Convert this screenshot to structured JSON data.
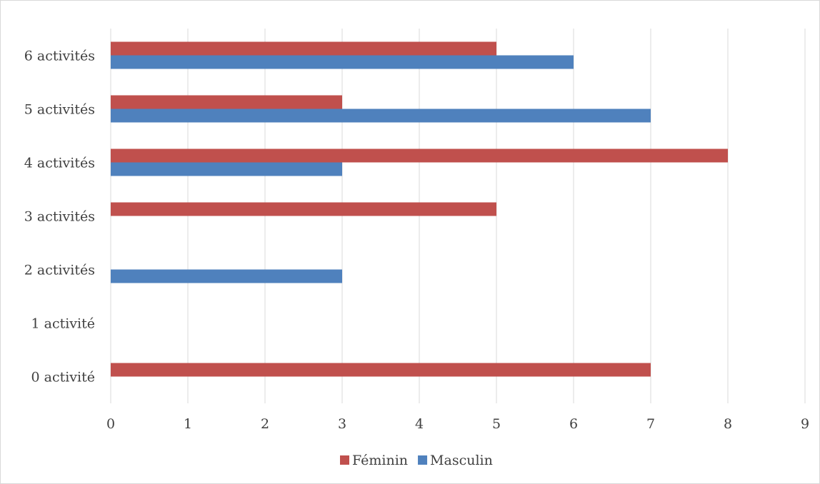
{
  "chart_data": {
    "type": "bar",
    "orientation": "horizontal",
    "categories": [
      "0 activité",
      "1 activité",
      "2 activités",
      "3 activités",
      "4 activités",
      "5 activités",
      "6 activités"
    ],
    "series": [
      {
        "name": "Féminin",
        "color": "#c0504d",
        "values": [
          7,
          0,
          0,
          5,
          8,
          3,
          5
        ]
      },
      {
        "name": "Masculin",
        "color": "#4f81bd",
        "values": [
          0,
          0,
          3,
          0,
          3,
          7,
          6
        ]
      }
    ],
    "xlim": [
      0,
      9
    ],
    "xticks": [
      "0",
      "1",
      "2",
      "3",
      "4",
      "5",
      "6",
      "7",
      "8",
      "9"
    ],
    "grid": "vertical",
    "gridColor": "#d9d9d9",
    "legend_position": "bottom"
  }
}
